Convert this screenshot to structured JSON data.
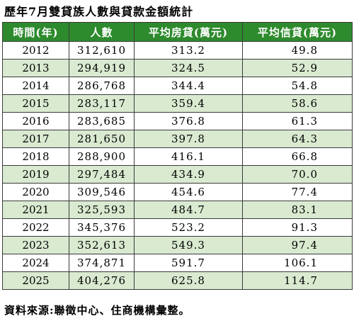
{
  "title": "歷年7月雙貸族人數與貸款金額統計",
  "headers": {
    "year": "時間(年)",
    "people": "人數",
    "house_loan": "平均房貸(萬元)",
    "credit_loan": "平均信貸(萬元)"
  },
  "rows": [
    {
      "year": "2012",
      "people": "312,610",
      "house": "313.2",
      "credit": "49.8"
    },
    {
      "year": "2013",
      "people": "294,919",
      "house": "324.5",
      "credit": "52.9"
    },
    {
      "year": "2014",
      "people": "286,768",
      "house": "344.4",
      "credit": "54.8"
    },
    {
      "year": "2015",
      "people": "283,117",
      "house": "359.4",
      "credit": "58.6"
    },
    {
      "year": "2016",
      "people": "283,685",
      "house": "376.8",
      "credit": "61.3"
    },
    {
      "year": "2017",
      "people": "281,650",
      "house": "397.8",
      "credit": "64.3"
    },
    {
      "year": "2018",
      "people": "288,900",
      "house": "416.1",
      "credit": "66.8"
    },
    {
      "year": "2019",
      "people": "297,484",
      "house": "434.9",
      "credit": "70.0"
    },
    {
      "year": "2020",
      "people": "309,546",
      "house": "454.6",
      "credit": "77.4"
    },
    {
      "year": "2021",
      "people": "325,593",
      "house": "484.7",
      "credit": "83.1"
    },
    {
      "year": "2022",
      "people": "345,376",
      "house": "523.2",
      "credit": "91.3"
    },
    {
      "year": "2023",
      "people": "352,613",
      "house": "549.3",
      "credit": "97.4"
    },
    {
      "year": "2024",
      "people": "374,871",
      "house": "591.7",
      "credit": "106.1"
    },
    {
      "year": "2025",
      "people": "404,276",
      "house": "625.8",
      "credit": "114.7"
    }
  ],
  "source": "資料來源:聯徵中心、住商機構彙整。",
  "colors": {
    "header_bg": "#2d8a2d",
    "header_text": "#ffffff",
    "band_row": "#d9ead0",
    "plain_row": "#ffffff"
  }
}
